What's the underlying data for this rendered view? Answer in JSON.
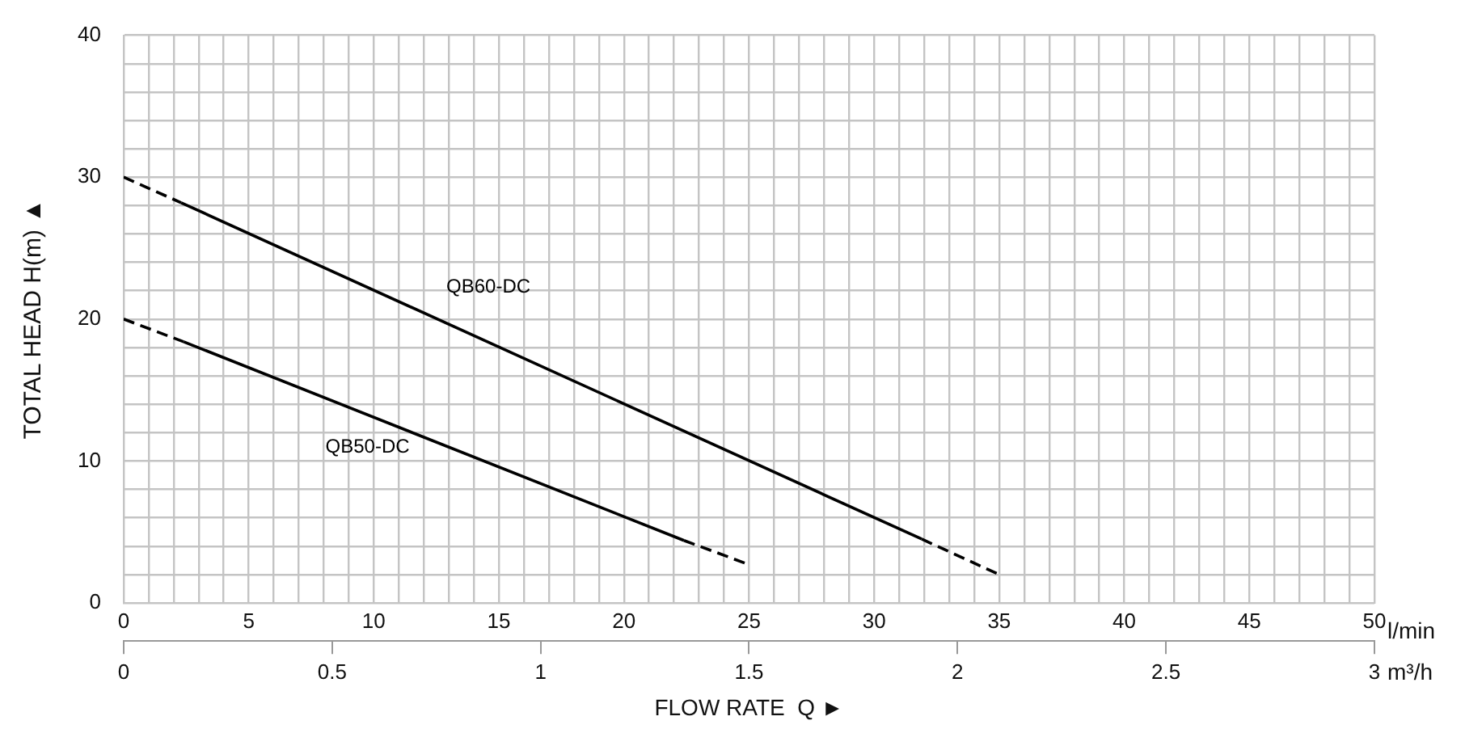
{
  "chart_data": {
    "type": "line",
    "xlabel": "FLOW RATE  Q ►",
    "ylabel": "TOTAL HEAD H(m) ▲",
    "xlim": [
      0,
      50
    ],
    "ylim": [
      0,
      40
    ],
    "xticks": [
      0,
      {
        "value": 1,
        "label": null
      },
      {
        "value": 2,
        "label": null
      },
      {
        "value": 3,
        "label": null
      },
      {
        "value": 4,
        "label": null
      },
      5,
      {
        "value": 6,
        "label": null
      },
      {
        "value": 7,
        "label": null
      },
      {
        "value": 8,
        "label": null
      },
      {
        "value": 9,
        "label": null
      },
      10,
      {
        "value": 11,
        "label": null
      },
      {
        "value": 12,
        "label": null
      },
      {
        "value": 13,
        "label": null
      },
      {
        "value": 14,
        "label": null
      },
      15,
      {
        "value": 16,
        "label": null
      },
      {
        "value": 17,
        "label": null
      },
      {
        "value": 18,
        "label": null
      },
      {
        "value": 19,
        "label": null
      },
      20,
      {
        "value": 21,
        "label": null
      },
      {
        "value": 22,
        "label": null
      },
      {
        "value": 23,
        "label": null
      },
      {
        "value": 24,
        "label": null
      },
      25,
      {
        "value": 26,
        "label": null
      },
      {
        "value": 27,
        "label": null
      },
      {
        "value": 28,
        "label": null
      },
      {
        "value": 29,
        "label": null
      },
      30,
      {
        "value": 31,
        "label": null
      },
      {
        "value": 32,
        "label": null
      },
      {
        "value": 33,
        "label": null
      },
      {
        "value": 34,
        "label": null
      },
      35,
      {
        "value": 36,
        "label": null
      },
      {
        "value": 37,
        "label": null
      },
      {
        "value": 38,
        "label": null
      },
      {
        "value": 39,
        "label": null
      },
      40,
      {
        "value": 41,
        "label": null
      },
      {
        "value": 42,
        "label": null
      },
      {
        "value": 43,
        "label": null
      },
      {
        "value": 44,
        "label": null
      },
      45,
      {
        "value": 46,
        "label": null
      },
      {
        "value": 47,
        "label": null
      },
      {
        "value": 48,
        "label": null
      },
      {
        "value": 49,
        "label": null
      },
      50
    ],
    "yticks": [
      0,
      {
        "value": 2,
        "label": null
      },
      {
        "value": 4,
        "label": null
      },
      {
        "value": 6,
        "label": null
      },
      {
        "value": 8,
        "label": null
      },
      10,
      {
        "value": 12,
        "label": null
      },
      {
        "value": 14,
        "label": null
      },
      {
        "value": 16,
        "label": null
      },
      {
        "value": 18,
        "label": null
      },
      20,
      {
        "value": 22,
        "label": null
      },
      {
        "value": 24,
        "label": null
      },
      {
        "value": 26,
        "label": null
      },
      {
        "value": 28,
        "label": null
      },
      30,
      {
        "value": 32,
        "label": null
      },
      {
        "value": 34,
        "label": null
      },
      {
        "value": 36,
        "label": null
      },
      {
        "value": 38,
        "label": null
      },
      40
    ],
    "x2lim": [
      0,
      3
    ],
    "x2ticks": [
      0,
      0.5,
      1,
      1.5,
      2,
      2.5,
      3
    ],
    "grid": true,
    "legend": false,
    "marker": "none",
    "series": [
      {
        "color": "#000000",
        "line_style": "dashed",
        "x": [
          0,
          2.3
        ],
        "values": [
          30,
          28.2
        ]
      },
      {
        "name": "QB60-DC",
        "color": "#000000",
        "line_style": "solid",
        "x": [
          2.3,
          31.9
        ],
        "values": [
          28.2,
          4.5
        ]
      },
      {
        "color": "#000000",
        "line_style": "dashed",
        "x": [
          31.9,
          35
        ],
        "values": [
          4.5,
          2
        ]
      },
      {
        "color": "#000000",
        "line_style": "dashed",
        "x": [
          0,
          2.4
        ],
        "values": [
          20,
          18.4
        ]
      },
      {
        "name": "QB50-DC",
        "color": "#000000",
        "line_style": "solid",
        "x": [
          2.4,
          22.4
        ],
        "values": [
          18.4,
          4.4
        ]
      },
      {
        "color": "#000000",
        "line_style": "dashed",
        "x": [
          22.4,
          25
        ],
        "values": [
          4.4,
          2.7
        ]
      }
    ],
    "annotations": [
      "l/min",
      "m³/h"
    ]
  }
}
